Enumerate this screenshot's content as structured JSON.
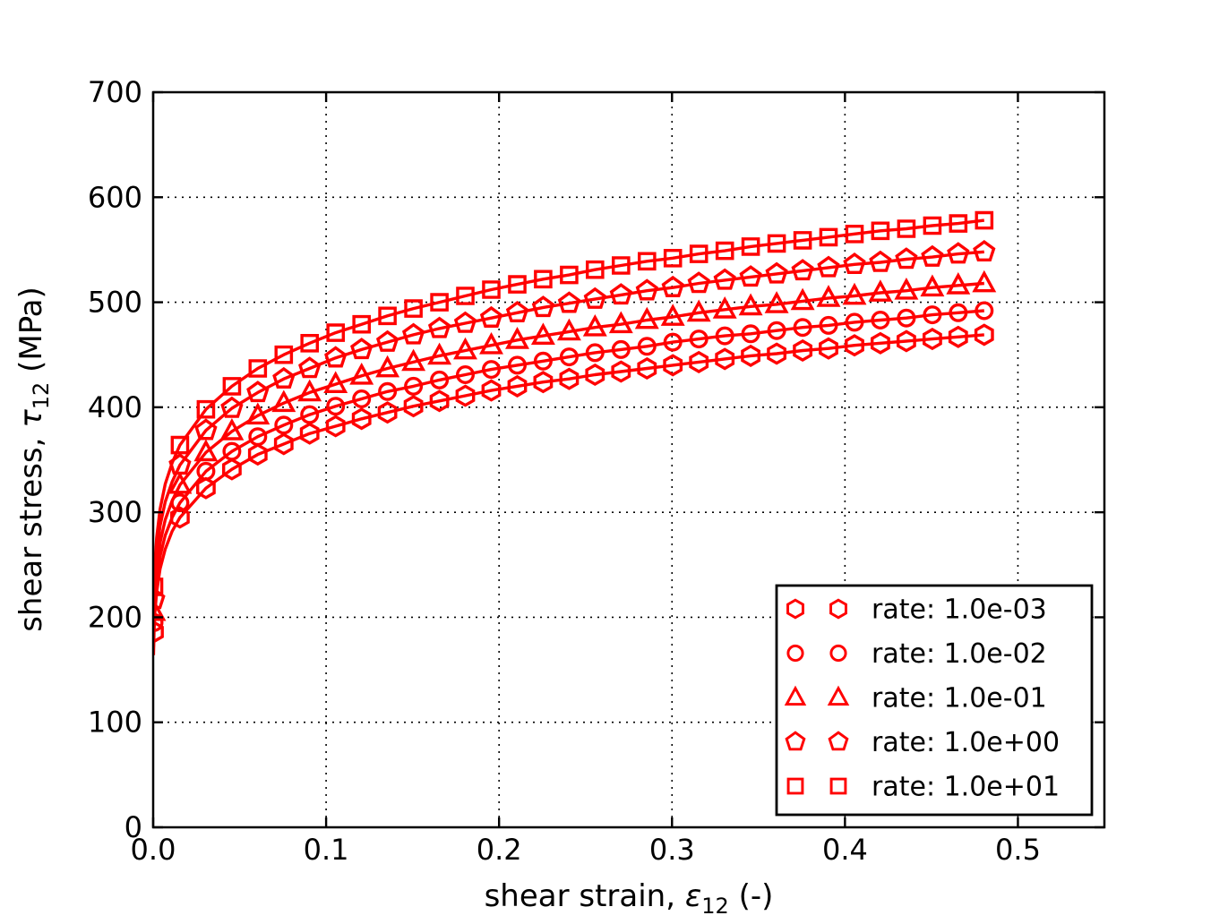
{
  "figure": {
    "background": "#ffffff",
    "accent_color": "#ff0000",
    "text_color": "#000000",
    "grid_color": "#000000"
  },
  "chart_data": {
    "type": "line",
    "title": "",
    "xlabel": {
      "prefix": "shear strain, ",
      "symbol": "ε",
      "subscript": "12",
      "suffix": " (-)"
    },
    "ylabel": {
      "prefix": "shear stress, ",
      "symbol": "τ",
      "subscript": "12",
      "suffix": " (MPa)"
    },
    "xlim": [
      0,
      0.55
    ],
    "ylim": [
      0,
      700
    ],
    "grid": "dotted",
    "legend_position": "lower right",
    "x_ticks": {
      "values": [
        0,
        0.1,
        0.2,
        0.3,
        0.4,
        0.5
      ],
      "labels": [
        "0.0",
        "0.1",
        "0.2",
        "0.3",
        "0.4",
        "0.5"
      ]
    },
    "y_ticks": {
      "values": [
        0,
        100,
        200,
        300,
        400,
        500,
        600,
        700
      ],
      "labels": [
        "0",
        "100",
        "200",
        "300",
        "400",
        "500",
        "600",
        "700"
      ]
    },
    "x": [
      0.0002,
      0.0005,
      0.001,
      0.002,
      0.004,
      0.007,
      0.011,
      0.0155,
      0.0305,
      0.0455,
      0.0605,
      0.0755,
      0.0905,
      0.1055,
      0.1205,
      0.1355,
      0.1505,
      0.1655,
      0.1805,
      0.1955,
      0.2105,
      0.2255,
      0.2405,
      0.2555,
      0.2705,
      0.2855,
      0.3005,
      0.3155,
      0.3305,
      0.3455,
      0.3605,
      0.3755,
      0.3905,
      0.4055,
      0.4205,
      0.4355,
      0.4505,
      0.4655,
      0.4805
    ],
    "marker_indices": [
      1,
      7,
      8,
      9,
      10,
      11,
      12,
      13,
      14,
      15,
      16,
      17,
      18,
      19,
      20,
      21,
      22,
      23,
      24,
      25,
      26,
      27,
      28,
      29,
      30,
      31,
      32,
      33,
      34,
      35,
      36,
      37,
      38
    ],
    "series": [
      {
        "label": "rate: 1.0e-03",
        "marker": "hexagon",
        "color": "#ff0000",
        "y": [
          164,
          186,
          204,
          224,
          246,
          265,
          282,
          295,
          323,
          341,
          355,
          365,
          375,
          382,
          389,
          395,
          401,
          406,
          411,
          416,
          420,
          424,
          427,
          431,
          434,
          437,
          440,
          443,
          446,
          449,
          451,
          454,
          456,
          459,
          461,
          463,
          465,
          467,
          469
        ]
      },
      {
        "label": "rate: 1.0e-02",
        "marker": "circle",
        "color": "#ff0000",
        "y": [
          172,
          195,
          214,
          235,
          258,
          278,
          295,
          309,
          339,
          358,
          372,
          383,
          393,
          401,
          408,
          415,
          420,
          426,
          431,
          436,
          440,
          444,
          448,
          452,
          455,
          458,
          462,
          465,
          468,
          470,
          473,
          476,
          478,
          481,
          483,
          485,
          488,
          490,
          492
        ]
      },
      {
        "label": "rate: 1.0e-01",
        "marker": "triangle",
        "color": "#ff0000",
        "y": [
          181,
          205,
          225,
          247,
          271,
          293,
          311,
          326,
          357,
          377,
          392,
          404,
          414,
          422,
          430,
          437,
          443,
          449,
          454,
          459,
          464,
          468,
          472,
          476,
          479,
          483,
          486,
          490,
          493,
          496,
          498,
          501,
          504,
          506,
          509,
          511,
          514,
          516,
          518
        ]
      },
      {
        "label": "rate: 1.0e+00",
        "marker": "pentagon",
        "color": "#ff0000",
        "y": [
          192,
          217,
          238,
          261,
          287,
          310,
          329,
          345,
          378,
          399,
          414,
          427,
          437,
          447,
          455,
          462,
          469,
          475,
          480,
          485,
          490,
          495,
          499,
          503,
          507,
          511,
          514,
          518,
          521,
          524,
          527,
          530,
          533,
          536,
          538,
          541,
          543,
          546,
          548
        ]
      },
      {
        "label": "rate: 1.0e+01",
        "marker": "square",
        "color": "#ff0000",
        "y": [
          202,
          229,
          251,
          276,
          303,
          327,
          347,
          364,
          398,
          420,
          437,
          450,
          461,
          471,
          479,
          487,
          494,
          500,
          506,
          512,
          517,
          522,
          526,
          531,
          535,
          539,
          542,
          546,
          549,
          553,
          556,
          559,
          562,
          565,
          568,
          570,
          573,
          575,
          578
        ]
      }
    ]
  }
}
